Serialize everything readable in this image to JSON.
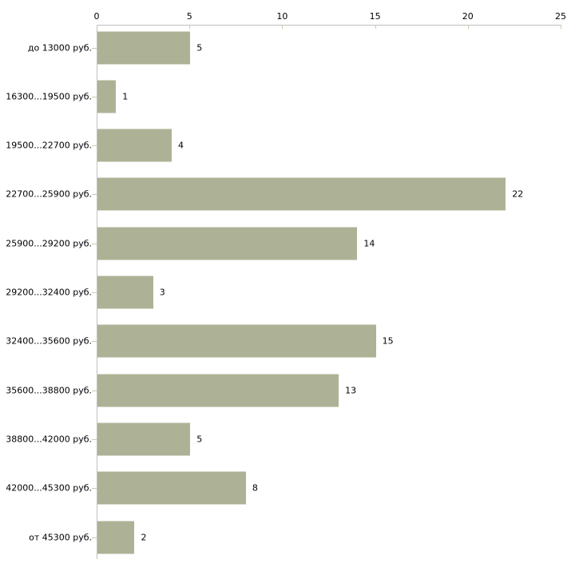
{
  "chart_data": {
    "type": "bar",
    "orientation": "horizontal",
    "title": "",
    "xlabel": "",
    "ylabel": "",
    "categories": [
      "до 13000 руб.",
      "16300...19500 руб.",
      "19500...22700 руб.",
      "22700...25900 руб.",
      "25900...29200 руб.",
      "29200...32400 руб.",
      "32400...35600 руб.",
      "35600...38800 руб.",
      "38800...42000 руб.",
      "42000...45300 руб.",
      "от 45300 руб."
    ],
    "values": [
      5,
      1,
      4,
      22,
      14,
      3,
      15,
      13,
      5,
      8,
      2
    ],
    "xlim": [
      0,
      25
    ],
    "x_ticks": [
      0,
      5,
      10,
      15,
      20,
      25
    ],
    "value_labels_shown": true,
    "grid": false,
    "legend": "none",
    "colors": {
      "bar": "#adb296",
      "axis_line": "#c0c0c0",
      "tick_mark": "#c9cbaa",
      "text": "#000000",
      "background": "#ffffff"
    }
  }
}
